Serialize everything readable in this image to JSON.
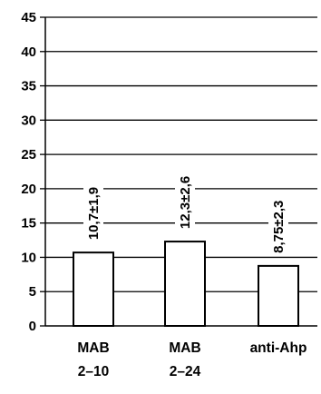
{
  "chart_data": {
    "type": "bar",
    "categories": [
      [
        "MAB",
        "2–10"
      ],
      [
        "MAB",
        "2–24"
      ],
      [
        "anti-Ahp"
      ]
    ],
    "values": [
      10.7,
      12.3,
      8.75
    ],
    "data_labels": [
      "10,7±1,9",
      "12,3±2,6",
      "8,75±2,3"
    ],
    "ylim": [
      0,
      45
    ],
    "yticks": [
      "0",
      "5",
      "10",
      "15",
      "20",
      "25",
      "30",
      "35",
      "40",
      "45"
    ],
    "grid": true,
    "bar_fill": "#ffffff",
    "bar_stroke": "#000000"
  }
}
